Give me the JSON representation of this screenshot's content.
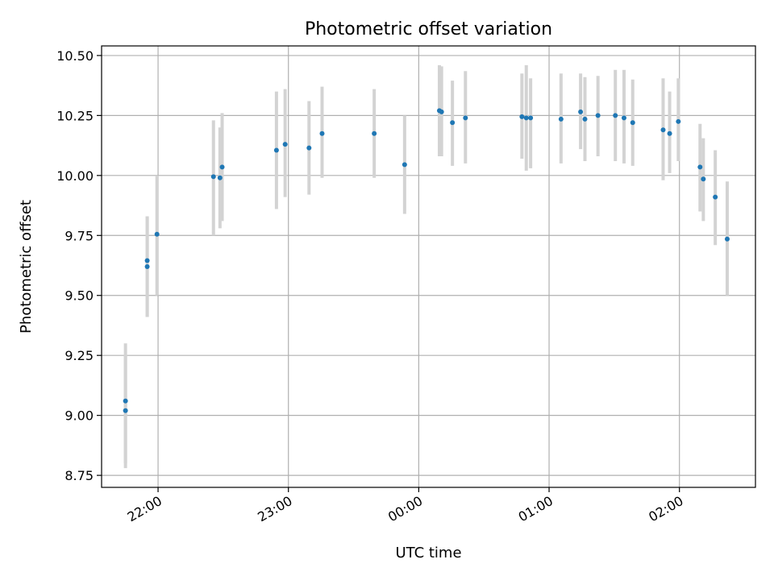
{
  "chart_data": {
    "type": "scatter",
    "title": "Photometric offset variation",
    "xlabel": "UTC time",
    "ylabel": "Photometric offset",
    "xlim": [
      "2000-01-01T21:34:00",
      "2000-01-02T02:35:00"
    ],
    "ylim": [
      8.7,
      10.54
    ],
    "x_ticks": [
      {
        "t": "2000-01-01T22:00:00",
        "label": "22:00"
      },
      {
        "t": "2000-01-01T23:00:00",
        "label": "23:00"
      },
      {
        "t": "2000-01-02T00:00:00",
        "label": "00:00"
      },
      {
        "t": "2000-01-02T01:00:00",
        "label": "01:00"
      },
      {
        "t": "2000-01-02T02:00:00",
        "label": "02:00"
      }
    ],
    "y_ticks": [
      {
        "v": 8.75,
        "label": "8.75"
      },
      {
        "v": 9.0,
        "label": "9.00"
      },
      {
        "v": 9.25,
        "label": "9.25"
      },
      {
        "v": 9.5,
        "label": "9.50"
      },
      {
        "v": 9.75,
        "label": "9.75"
      },
      {
        "v": 10.0,
        "label": "10.00"
      },
      {
        "v": 10.25,
        "label": "10.25"
      },
      {
        "v": 10.5,
        "label": "10.50"
      }
    ],
    "grid": true,
    "marker_color": "#1f77b4",
    "errorbar_color": "#d3d3d3",
    "points": [
      {
        "t": "2000-01-01T21:45:00",
        "y": 9.06,
        "lo": 8.8,
        "hi": 9.3
      },
      {
        "t": "2000-01-01T21:45:00",
        "y": 9.02,
        "lo": 8.78,
        "hi": 9.25
      },
      {
        "t": "2000-01-01T21:55:00",
        "y": 9.645,
        "lo": 9.41,
        "hi": 9.83
      },
      {
        "t": "2000-01-01T21:55:00",
        "y": 9.62,
        "lo": 9.41,
        "hi": 9.83
      },
      {
        "t": "2000-01-01T21:59:30",
        "y": 9.755,
        "lo": 9.5,
        "hi": 10.0
      },
      {
        "t": "2000-01-01T22:25:30",
        "y": 9.995,
        "lo": 9.75,
        "hi": 10.23
      },
      {
        "t": "2000-01-01T22:28:30",
        "y": 9.99,
        "lo": 9.78,
        "hi": 10.2
      },
      {
        "t": "2000-01-01T22:29:30",
        "y": 10.035,
        "lo": 9.81,
        "hi": 10.26
      },
      {
        "t": "2000-01-01T22:54:30",
        "y": 10.105,
        "lo": 9.86,
        "hi": 10.35
      },
      {
        "t": "2000-01-01T22:58:30",
        "y": 10.13,
        "lo": 9.91,
        "hi": 10.36
      },
      {
        "t": "2000-01-01T23:09:30",
        "y": 10.115,
        "lo": 9.92,
        "hi": 10.31
      },
      {
        "t": "2000-01-01T23:15:30",
        "y": 10.175,
        "lo": 9.99,
        "hi": 10.37
      },
      {
        "t": "2000-01-01T23:39:30",
        "y": 10.175,
        "lo": 9.99,
        "hi": 10.36
      },
      {
        "t": "2000-01-01T23:53:30",
        "y": 10.045,
        "lo": 9.84,
        "hi": 10.25
      },
      {
        "t": "2000-01-02T00:09:30",
        "y": 10.27,
        "lo": 10.08,
        "hi": 10.46
      },
      {
        "t": "2000-01-02T00:10:30",
        "y": 10.265,
        "lo": 10.08,
        "hi": 10.455
      },
      {
        "t": "2000-01-02T00:15:30",
        "y": 10.22,
        "lo": 10.04,
        "hi": 10.395
      },
      {
        "t": "2000-01-02T00:21:30",
        "y": 10.24,
        "lo": 10.05,
        "hi": 10.435
      },
      {
        "t": "2000-01-02T00:47:30",
        "y": 10.245,
        "lo": 10.07,
        "hi": 10.425
      },
      {
        "t": "2000-01-02T00:49:30",
        "y": 10.24,
        "lo": 10.02,
        "hi": 10.46
      },
      {
        "t": "2000-01-02T00:51:30",
        "y": 10.24,
        "lo": 10.03,
        "hi": 10.405
      },
      {
        "t": "2000-01-02T01:05:30",
        "y": 10.235,
        "lo": 10.05,
        "hi": 10.425
      },
      {
        "t": "2000-01-02T01:14:30",
        "y": 10.265,
        "lo": 10.11,
        "hi": 10.425
      },
      {
        "t": "2000-01-02T01:16:30",
        "y": 10.235,
        "lo": 10.06,
        "hi": 10.41
      },
      {
        "t": "2000-01-02T01:22:30",
        "y": 10.25,
        "lo": 10.08,
        "hi": 10.415
      },
      {
        "t": "2000-01-02T01:30:30",
        "y": 10.25,
        "lo": 10.06,
        "hi": 10.44
      },
      {
        "t": "2000-01-02T01:34:30",
        "y": 10.24,
        "lo": 10.05,
        "hi": 10.44
      },
      {
        "t": "2000-01-02T01:38:30",
        "y": 10.22,
        "lo": 10.04,
        "hi": 10.4
      },
      {
        "t": "2000-01-02T01:52:30",
        "y": 10.19,
        "lo": 9.98,
        "hi": 10.405
      },
      {
        "t": "2000-01-02T01:55:30",
        "y": 10.175,
        "lo": 10.01,
        "hi": 10.35
      },
      {
        "t": "2000-01-02T01:59:30",
        "y": 10.225,
        "lo": 10.06,
        "hi": 10.405
      },
      {
        "t": "2000-01-02T02:09:30",
        "y": 10.035,
        "lo": 9.85,
        "hi": 10.215
      },
      {
        "t": "2000-01-02T02:11:00",
        "y": 9.985,
        "lo": 9.81,
        "hi": 10.155
      },
      {
        "t": "2000-01-02T02:16:30",
        "y": 9.91,
        "lo": 9.71,
        "hi": 10.105
      },
      {
        "t": "2000-01-02T02:22:00",
        "y": 9.735,
        "lo": 9.5,
        "hi": 9.975
      }
    ]
  }
}
